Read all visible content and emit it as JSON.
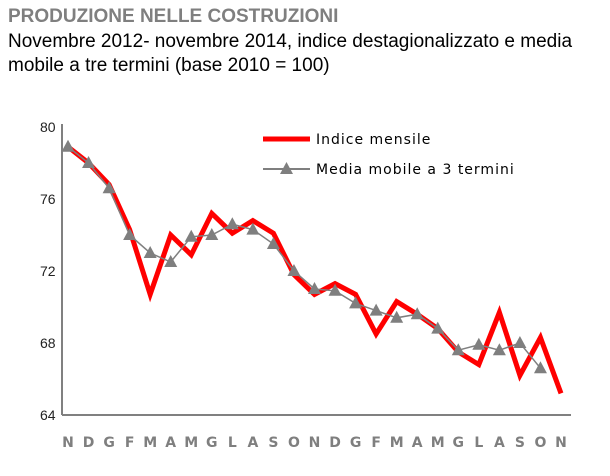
{
  "title": "PRODUZIONE NELLE COSTRUZIONI",
  "subtitle": "Novembre 2012- novembre 2014, indice destagionalizzato e media mobile a tre termini (base 2010 = 100)",
  "chart_data": {
    "type": "line",
    "categories": [
      "N",
      "D",
      "G",
      "F",
      "M",
      "A",
      "M",
      "G",
      "L",
      "A",
      "S",
      "O",
      "N",
      "D",
      "G",
      "F",
      "M",
      "A",
      "M",
      "G",
      "L",
      "A",
      "S",
      "O",
      "N"
    ],
    "ylim": [
      64,
      80
    ],
    "yticks": [
      64,
      68,
      72,
      76,
      80
    ],
    "grid": false,
    "legend": "top-right",
    "series": [
      {
        "name": "Indice mensile",
        "color": "#ff0000",
        "values": [
          78.9,
          78.0,
          76.8,
          74.3,
          70.7,
          74.0,
          72.9,
          75.2,
          74.1,
          74.8,
          74.1,
          71.8,
          70.7,
          71.3,
          70.7,
          68.5,
          70.3,
          69.6,
          68.8,
          67.5,
          66.8,
          69.7,
          66.2,
          68.3,
          65.2
        ]
      },
      {
        "name": "Media mobile a 3 termini",
        "color": "#7f7f7f",
        "marker": "triangle",
        "values": [
          78.9,
          78.0,
          76.6,
          74.0,
          73.0,
          72.5,
          73.9,
          74.0,
          74.6,
          74.3,
          73.5,
          72.0,
          71.0,
          70.9,
          70.2,
          69.8,
          69.4,
          69.6,
          68.8,
          67.6,
          67.9,
          67.6,
          68.0,
          66.6,
          null
        ]
      }
    ]
  }
}
